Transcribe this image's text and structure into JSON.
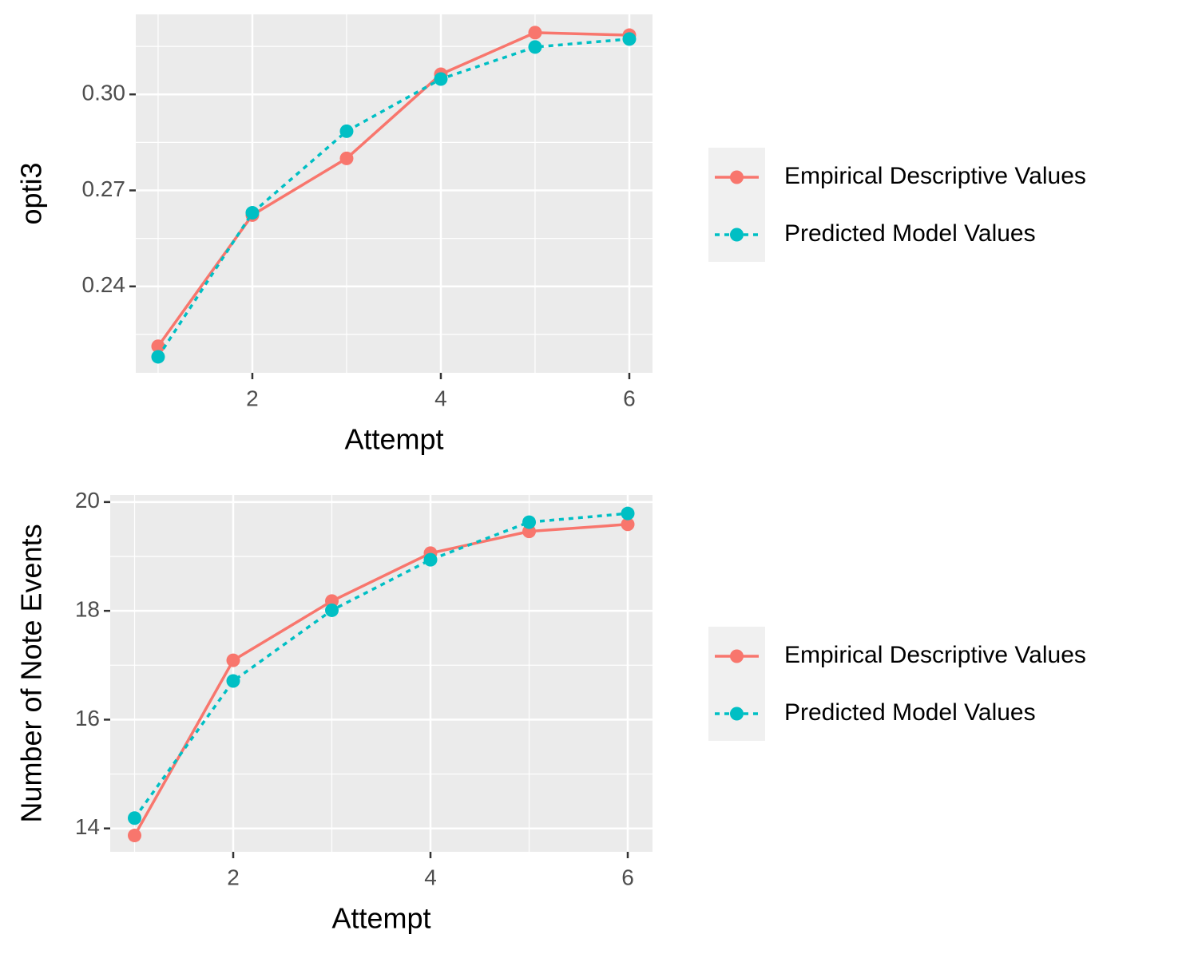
{
  "chart_data": [
    {
      "type": "line",
      "x_label": "Attempt",
      "y_label": "opti3",
      "x": [
        1,
        2,
        3,
        4,
        5,
        6
      ],
      "xlim": [
        0.763,
        6.246
      ],
      "xticks": [
        2,
        4,
        6
      ],
      "ylim": [
        0.213,
        0.325
      ],
      "yticks": [
        0.24,
        0.27,
        {
          "value": 0.3,
          "label": "0.30"
        }
      ],
      "grid": true,
      "legend": "right",
      "series": [
        {
          "name": "Empirical Descriptive Values",
          "color": "#F8766D",
          "linestyle": "solid",
          "values": [
            0.2213,
            0.2623,
            0.28,
            0.3063,
            0.3193,
            0.3185
          ]
        },
        {
          "name": "Predicted Model Values",
          "color": "#00BFC4",
          "linestyle": "dotted",
          "values": [
            0.218,
            0.263,
            0.2885,
            0.3048,
            0.3148,
            0.3173
          ]
        }
      ]
    },
    {
      "type": "line",
      "x_label": "Attempt",
      "y_label": "Number of Note Events",
      "x": [
        1,
        2,
        3,
        4,
        5,
        6
      ],
      "xlim": [
        0.753,
        6.251
      ],
      "xticks": [
        2,
        4,
        6
      ],
      "ylim": [
        13.57,
        20.13
      ],
      "yticks": [
        14,
        16,
        18,
        20
      ],
      "grid": true,
      "legend": "right",
      "series": [
        {
          "name": "Empirical Descriptive Values",
          "color": "#F8766D",
          "linestyle": "solid",
          "values": [
            13.87,
            17.09,
            18.18,
            19.06,
            19.46,
            19.59
          ]
        },
        {
          "name": "Predicted Model Values",
          "color": "#00BFC4",
          "linestyle": "dotted",
          "values": [
            14.19,
            16.71,
            18.01,
            18.94,
            19.63,
            19.79
          ]
        }
      ]
    }
  ]
}
